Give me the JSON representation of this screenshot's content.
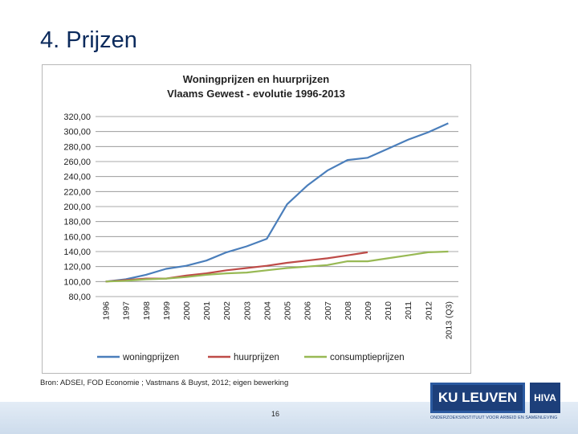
{
  "slide": {
    "title": "4. Prijzen",
    "source": "Bron: ADSEI, FOD Economie ; Vastmans & Buyst, 2012; eigen bewerking",
    "page_number": "16"
  },
  "logos": {
    "ku_leuven": "KU LEUVEN",
    "hiva": "HIVA",
    "hiva_subtitle": "ONDERZOEKSINSTITUUT VOOR ARBEID EN SAMENLEVING"
  },
  "colors": {
    "woningprijzen": "#4a7ebb",
    "huurprijzen": "#be4b48",
    "consumptieprijzen": "#98b954",
    "grid": "#8c8c8c",
    "title_text": "#0b2a5c"
  },
  "chart_data": {
    "type": "line",
    "title_line1": "Woningprijzen en huurprijzen",
    "title_line2": "Vlaams Gewest - evolutie 1996-2013",
    "categories": [
      "1996",
      "1997",
      "1998",
      "1999",
      "2000",
      "2001",
      "2002",
      "2003",
      "2004",
      "2005",
      "2006",
      "2007",
      "2008",
      "2009",
      "2010",
      "2011",
      "2012",
      "2013 (Q3)"
    ],
    "ylim": [
      80,
      320
    ],
    "yticks": [
      80,
      100,
      120,
      140,
      160,
      180,
      200,
      220,
      240,
      260,
      280,
      300,
      320
    ],
    "ytick_labels": [
      "80,00",
      "100,00",
      "120,00",
      "140,00",
      "160,00",
      "180,00",
      "200,00",
      "220,00",
      "240,00",
      "260,00",
      "280,00",
      "300,00",
      "320,00"
    ],
    "grid": true,
    "legend_position": "bottom",
    "series": [
      {
        "name": "woningprijzen",
        "values": [
          100,
          103,
          109,
          117,
          121,
          128,
          139,
          147,
          157,
          203,
          228,
          248,
          262,
          265,
          277,
          289,
          299,
          311
        ]
      },
      {
        "name": "huurprijzen",
        "values": [
          100,
          102,
          104,
          104,
          108,
          111,
          115,
          118,
          121,
          125,
          128,
          131,
          135,
          139,
          null,
          null,
          null,
          null
        ]
      },
      {
        "name": "consumptieprijzen",
        "values": [
          100,
          101,
          103,
          104,
          106,
          109,
          111,
          112,
          115,
          118,
          120,
          122,
          127,
          127,
          131,
          135,
          139,
          140
        ]
      }
    ]
  }
}
